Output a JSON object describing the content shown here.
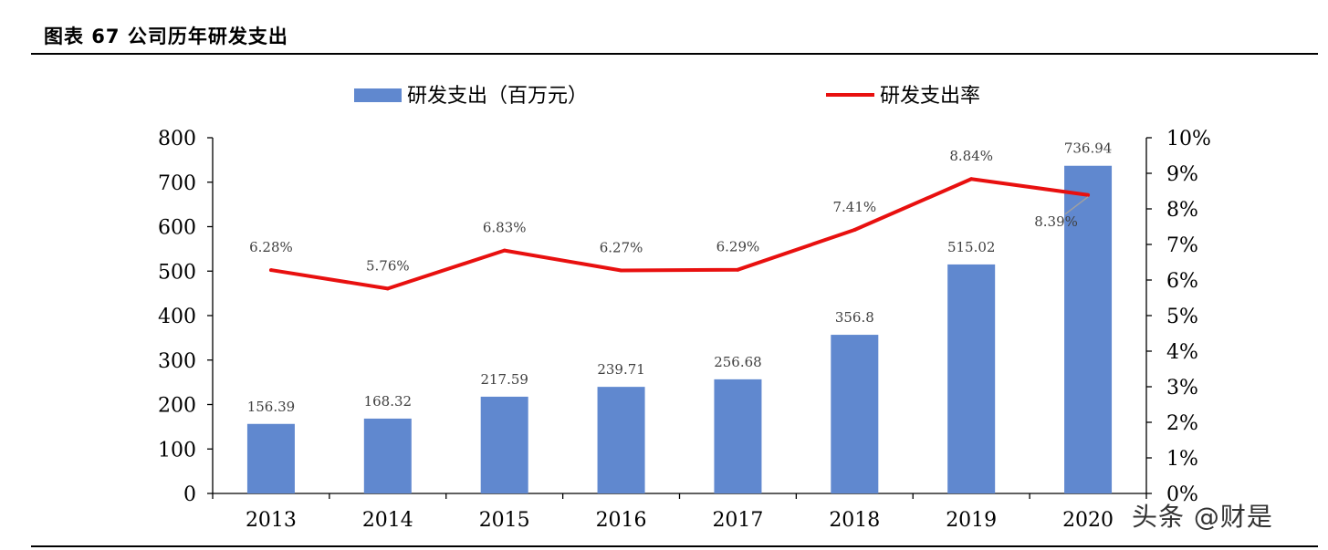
{
  "header": {
    "title": "图表 67 公司历年研发支出"
  },
  "watermark": "头条 @财是",
  "chart_data": {
    "type": "bar",
    "categories": [
      "2013",
      "2014",
      "2015",
      "2016",
      "2017",
      "2018",
      "2019",
      "2020"
    ],
    "series": [
      {
        "name": "研发支出（百万元）",
        "type": "bar",
        "axis": "left",
        "color": "#6088CF",
        "values": [
          156.39,
          168.32,
          217.59,
          239.71,
          256.68,
          356.8,
          515.02,
          736.94
        ],
        "labels": [
          "156.39",
          "168.32",
          "217.59",
          "239.71",
          "256.68",
          "356.8",
          "515.02",
          "736.94"
        ]
      },
      {
        "name": "研发支出率",
        "type": "line",
        "axis": "right",
        "color": "#E8100F",
        "values": [
          6.28,
          5.76,
          6.83,
          6.27,
          6.29,
          7.41,
          8.84,
          8.39
        ],
        "labels": [
          "6.28%",
          "5.76%",
          "6.83%",
          "6.27%",
          "6.29%",
          "7.41%",
          "8.84%",
          "8.39%"
        ]
      }
    ],
    "left_axis": {
      "min": 0,
      "max": 800,
      "step": 100,
      "ticks": [
        "0",
        "100",
        "200",
        "300",
        "400",
        "500",
        "600",
        "700",
        "800"
      ]
    },
    "right_axis": {
      "min": 0,
      "max": 10,
      "step": 1,
      "ticks": [
        "0%",
        "1%",
        "2%",
        "3%",
        "4%",
        "5%",
        "6%",
        "7%",
        "8%",
        "9%",
        "10%"
      ]
    },
    "legend_position": "top",
    "grid": false
  }
}
